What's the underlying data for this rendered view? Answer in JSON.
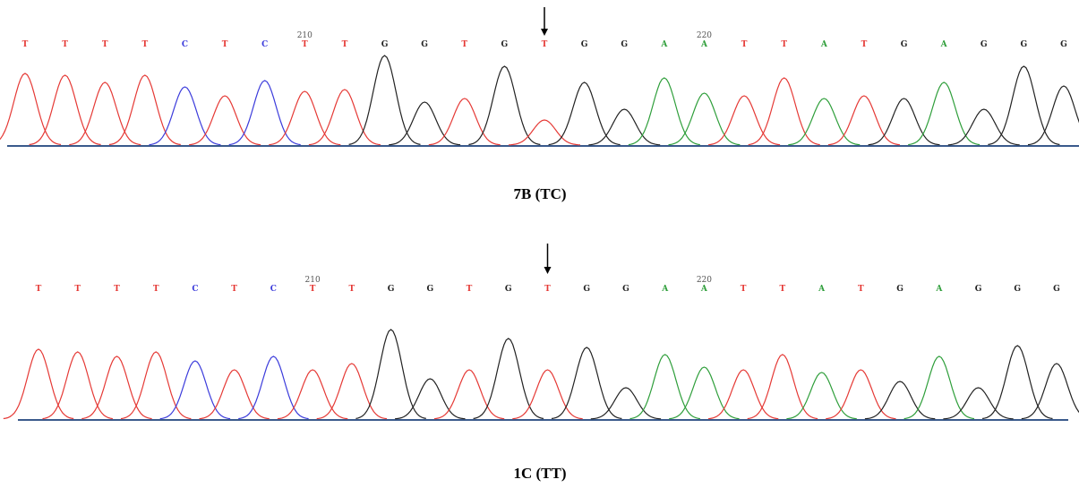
{
  "colors": {
    "T": "#e53935",
    "C": "#3b3bdb",
    "G": "#222222",
    "A": "#2e9e3a"
  },
  "panels": [
    {
      "bases": [
        "T",
        "T",
        "T",
        "T",
        "C",
        "T",
        "C",
        "T",
        "T",
        "G",
        "G",
        "T",
        "G",
        "T",
        "G",
        "G",
        "A",
        "A",
        "T",
        "T",
        "A",
        "T",
        "G",
        "A",
        "G",
        "G",
        "G"
      ],
      "position_labels": [
        {
          "index": 7,
          "label": "210"
        },
        {
          "index": 17,
          "label": "220"
        }
      ],
      "arrow_index": 13,
      "peaks": [
        80,
        78,
        70,
        78,
        65,
        55,
        72,
        60,
        62,
        100,
        48,
        52,
        88,
        28,
        70,
        40,
        75,
        58,
        55,
        75,
        52,
        55,
        52,
        70,
        40,
        88,
        66
      ],
      "caption": "7B (TC)"
    },
    {
      "bases": [
        "T",
        "T",
        "T",
        "T",
        "C",
        "T",
        "C",
        "T",
        "T",
        "G",
        "G",
        "T",
        "G",
        "T",
        "G",
        "G",
        "A",
        "A",
        "T",
        "T",
        "A",
        "T",
        "G",
        "A",
        "G",
        "G",
        "G"
      ],
      "position_labels": [
        {
          "index": 7,
          "label": "210"
        },
        {
          "index": 17,
          "label": "220"
        }
      ],
      "arrow_index": 13,
      "peaks": [
        78,
        75,
        70,
        75,
        65,
        55,
        70,
        55,
        62,
        100,
        45,
        55,
        90,
        55,
        80,
        35,
        72,
        58,
        55,
        72,
        52,
        55,
        42,
        70,
        35,
        82,
        62
      ],
      "caption": "1C (TT)"
    }
  ]
}
